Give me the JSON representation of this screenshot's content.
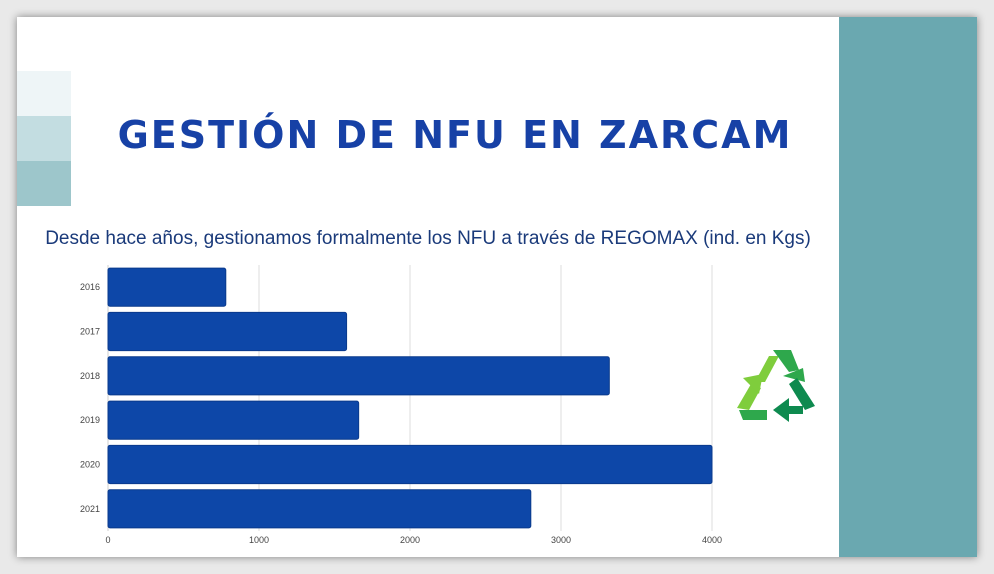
{
  "slide": {
    "title": "GESTIÓN DE NFU EN ZARCAM",
    "subtitle": "Desde hace años, gestionamos formalmente los NFU a través de REGOMAX (ind. en Kgs)"
  },
  "colors": {
    "bar": "#0d47a8",
    "title": "#1741a6",
    "side_panel": "#6aa8b0",
    "deco": [
      "#eef5f7",
      "#c3dde1",
      "#9dc6cb"
    ],
    "recycle": [
      "#7fcd3c",
      "#2ea84c",
      "#0e8a4f"
    ]
  },
  "icons": [
    "recycle-icon"
  ],
  "chart_data": {
    "type": "bar",
    "orientation": "horizontal",
    "categories": [
      "2016",
      "2017",
      "2018",
      "2019",
      "2020",
      "2021"
    ],
    "values": [
      780,
      1580,
      3320,
      1660,
      4000,
      2800
    ],
    "xlim": [
      0,
      4000
    ],
    "xticks": [
      0,
      1000,
      2000,
      3000,
      4000
    ],
    "grid": true,
    "title": "",
    "xlabel": "",
    "ylabel": ""
  }
}
